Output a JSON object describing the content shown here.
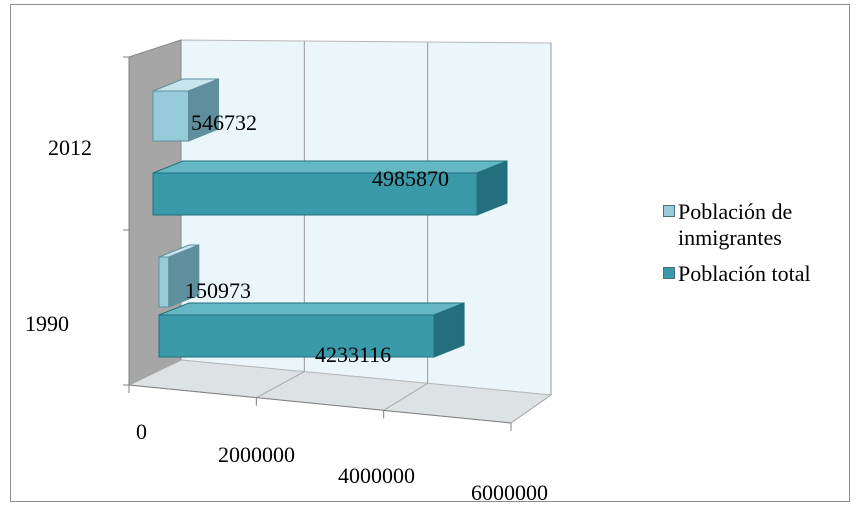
{
  "chart_data": {
    "type": "bar",
    "orientation": "horizontal",
    "style": "3d",
    "categories": [
      "1990",
      "2012"
    ],
    "series": [
      {
        "name": "Población total",
        "values": [
          4233116,
          4985870
        ],
        "color": "#3a9aaa"
      },
      {
        "name": "Población de inmigrantes",
        "values": [
          150973,
          546732
        ],
        "color": "#96ccd9"
      }
    ],
    "data_labels": {
      "total": [
        "4233116",
        "4985870"
      ],
      "immigrants": [
        "150973",
        "546732"
      ]
    },
    "xlim": [
      0,
      6000000
    ],
    "x_ticks": [
      "0",
      "2000000",
      "4000000",
      "6000000"
    ],
    "grid": true,
    "legend_position": "right"
  },
  "legend": {
    "items": [
      {
        "label_line1": "Población de",
        "label_line2": "inmigrantes",
        "color": "#96ccd9"
      },
      {
        "label_line1": "Población total",
        "label_line2": "",
        "color": "#3a9aaa"
      }
    ]
  }
}
